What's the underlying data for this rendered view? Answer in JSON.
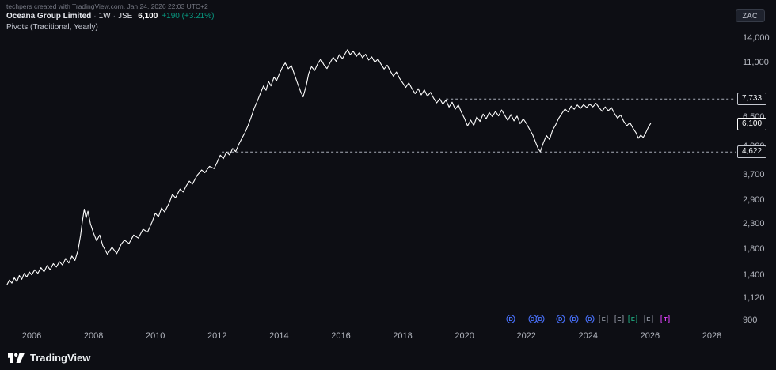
{
  "attribution": "techpers created with TradingView.com, Jan 24, 2026 22:03 UTC+2",
  "legend": {
    "symbol": "Oceana Group Limited",
    "separator": "·",
    "interval": "1W",
    "exchange": "JSE",
    "price": "6,100",
    "change": "+190 (+3.21%)",
    "indicator": "Pivots (Traditional, Yearly)"
  },
  "currency_badge": "ZAC",
  "logo_text": "TradingView",
  "colors": {
    "background": "#0d0e14",
    "panel_border": "#1f222c",
    "line": "#ffffff",
    "axis_text": "#b2b5be",
    "dim_text": "#787b86",
    "up": "#089981",
    "pivot_line": "#a9aeb9",
    "pivot_box_border": "#c5c8d0",
    "pivot_box_text": "#eceff2",
    "last_box_border": "#ffffff",
    "dividend": "#4a72ff",
    "earnings": "#8b8f9b",
    "earnings_alt": "#1fa67d",
    "split": "#e040fb",
    "badge_bg": "#1e222d",
    "badge_border": "#363b47",
    "badge_text": "#c9ccd6"
  },
  "chart_data": {
    "type": "line",
    "title": "Oceana Group Limited · 1W · JSE",
    "y_scale": "log",
    "grid": "off",
    "x_range": [
      2005.2,
      2028.8
    ],
    "y_range": [
      850,
      15000
    ],
    "x_ticks": [
      "2006",
      "2008",
      "2010",
      "2012",
      "2014",
      "2016",
      "2018",
      "2020",
      "2022",
      "2024",
      "2026",
      "2028"
    ],
    "x_tick_values": [
      2006,
      2008,
      2010,
      2012,
      2014,
      2016,
      2018,
      2020,
      2022,
      2024,
      2026,
      2028
    ],
    "y_ticks": [
      {
        "label": "14,000",
        "value": 14000
      },
      {
        "label": "11,000",
        "value": 11000
      },
      {
        "label": "6,500",
        "value": 6500
      },
      {
        "label": "4,900",
        "value": 4900
      },
      {
        "label": "3,700",
        "value": 3700
      },
      {
        "label": "2,900",
        "value": 2900
      },
      {
        "label": "2,300",
        "value": 2300
      },
      {
        "label": "1,800",
        "value": 1800
      },
      {
        "label": "1,400",
        "value": 1400
      },
      {
        "label": "1,120",
        "value": 1120
      },
      {
        "label": "900",
        "value": 900
      }
    ],
    "pivot_levels": [
      {
        "label": "7,733",
        "value": 7733,
        "start_year": 2019.4
      },
      {
        "label": "4,622",
        "value": 4622,
        "start_year": 2012.15
      }
    ],
    "last_price": {
      "label": "6,100",
      "value": 6100
    },
    "events": [
      {
        "label": "D",
        "shape": "circle",
        "color_key": "dividend",
        "year": 2021.5
      },
      {
        "label": "D",
        "shape": "circle",
        "color_key": "dividend",
        "year": 2022.2
      },
      {
        "label": "D",
        "shape": "circle",
        "color_key": "dividend",
        "year": 2022.45
      },
      {
        "label": "D",
        "shape": "circle",
        "color_key": "dividend",
        "year": 2023.1
      },
      {
        "label": "D",
        "shape": "circle",
        "color_key": "dividend",
        "year": 2023.55
      },
      {
        "label": "D",
        "shape": "circle",
        "color_key": "dividend",
        "year": 2024.05
      },
      {
        "label": "E",
        "shape": "square",
        "color_key": "earnings",
        "year": 2024.5
      },
      {
        "label": "E",
        "shape": "square",
        "color_key": "earnings",
        "year": 2025.0
      },
      {
        "label": "E",
        "shape": "square",
        "color_key": "earnings_alt",
        "year": 2025.45
      },
      {
        "label": "E",
        "shape": "square",
        "color_key": "earnings",
        "year": 2025.95
      },
      {
        "label": "T",
        "shape": "square",
        "color_key": "split",
        "year": 2026.5
      }
    ],
    "series": [
      {
        "name": "Oceana Group Limited close (ZAC)",
        "points": [
          [
            2005.2,
            1270
          ],
          [
            2005.28,
            1330
          ],
          [
            2005.36,
            1290
          ],
          [
            2005.44,
            1360
          ],
          [
            2005.52,
            1310
          ],
          [
            2005.6,
            1390
          ],
          [
            2005.68,
            1340
          ],
          [
            2005.76,
            1420
          ],
          [
            2005.84,
            1370
          ],
          [
            2005.92,
            1440
          ],
          [
            2006.0,
            1400
          ],
          [
            2006.1,
            1470
          ],
          [
            2006.2,
            1420
          ],
          [
            2006.3,
            1500
          ],
          [
            2006.4,
            1440
          ],
          [
            2006.5,
            1530
          ],
          [
            2006.6,
            1470
          ],
          [
            2006.7,
            1560
          ],
          [
            2006.8,
            1510
          ],
          [
            2006.9,
            1590
          ],
          [
            2007.0,
            1540
          ],
          [
            2007.1,
            1640
          ],
          [
            2007.2,
            1570
          ],
          [
            2007.3,
            1680
          ],
          [
            2007.4,
            1610
          ],
          [
            2007.5,
            1780
          ],
          [
            2007.58,
            2050
          ],
          [
            2007.64,
            2350
          ],
          [
            2007.7,
            2650
          ],
          [
            2007.76,
            2430
          ],
          [
            2007.82,
            2600
          ],
          [
            2007.9,
            2300
          ],
          [
            2008.0,
            2100
          ],
          [
            2008.1,
            1950
          ],
          [
            2008.2,
            2060
          ],
          [
            2008.3,
            1860
          ],
          [
            2008.45,
            1710
          ],
          [
            2008.6,
            1830
          ],
          [
            2008.75,
            1720
          ],
          [
            2008.9,
            1890
          ],
          [
            2009.0,
            1960
          ],
          [
            2009.15,
            1900
          ],
          [
            2009.3,
            2060
          ],
          [
            2009.45,
            2000
          ],
          [
            2009.6,
            2180
          ],
          [
            2009.75,
            2120
          ],
          [
            2009.9,
            2350
          ],
          [
            2010.0,
            2550
          ],
          [
            2010.1,
            2460
          ],
          [
            2010.2,
            2680
          ],
          [
            2010.3,
            2580
          ],
          [
            2010.45,
            2820
          ],
          [
            2010.55,
            3060
          ],
          [
            2010.65,
            2960
          ],
          [
            2010.8,
            3220
          ],
          [
            2010.9,
            3130
          ],
          [
            2011.0,
            3320
          ],
          [
            2011.1,
            3480
          ],
          [
            2011.2,
            3380
          ],
          [
            2011.35,
            3680
          ],
          [
            2011.5,
            3880
          ],
          [
            2011.6,
            3780
          ],
          [
            2011.75,
            4020
          ],
          [
            2011.9,
            3930
          ],
          [
            2012.0,
            4190
          ],
          [
            2012.1,
            4480
          ],
          [
            2012.2,
            4330
          ],
          [
            2012.3,
            4620
          ],
          [
            2012.4,
            4490
          ],
          [
            2012.5,
            4780
          ],
          [
            2012.6,
            4640
          ],
          [
            2012.7,
            4980
          ],
          [
            2012.8,
            5280
          ],
          [
            2012.9,
            5580
          ],
          [
            2013.0,
            5980
          ],
          [
            2013.1,
            6480
          ],
          [
            2013.2,
            7080
          ],
          [
            2013.3,
            7580
          ],
          [
            2013.4,
            8180
          ],
          [
            2013.5,
            8780
          ],
          [
            2013.58,
            8420
          ],
          [
            2013.66,
            9180
          ],
          [
            2013.74,
            8780
          ],
          [
            2013.84,
            9580
          ],
          [
            2013.92,
            9230
          ],
          [
            2014.0,
            9800
          ],
          [
            2014.1,
            10480
          ],
          [
            2014.2,
            10980
          ],
          [
            2014.3,
            10380
          ],
          [
            2014.4,
            10700
          ],
          [
            2014.5,
            9800
          ],
          [
            2014.6,
            9000
          ],
          [
            2014.7,
            8300
          ],
          [
            2014.78,
            7900
          ],
          [
            2014.88,
            8800
          ],
          [
            2014.96,
            9900
          ],
          [
            2015.05,
            10600
          ],
          [
            2015.15,
            10200
          ],
          [
            2015.25,
            10900
          ],
          [
            2015.35,
            11400
          ],
          [
            2015.45,
            10800
          ],
          [
            2015.55,
            10400
          ],
          [
            2015.65,
            11000
          ],
          [
            2015.75,
            11600
          ],
          [
            2015.85,
            11150
          ],
          [
            2015.95,
            11900
          ],
          [
            2016.05,
            11450
          ],
          [
            2016.15,
            12100
          ],
          [
            2016.22,
            12500
          ],
          [
            2016.3,
            11900
          ],
          [
            2016.4,
            12300
          ],
          [
            2016.5,
            11700
          ],
          [
            2016.6,
            12150
          ],
          [
            2016.7,
            11550
          ],
          [
            2016.8,
            11950
          ],
          [
            2016.9,
            11300
          ],
          [
            2017.0,
            11650
          ],
          [
            2017.1,
            11050
          ],
          [
            2017.2,
            11400
          ],
          [
            2017.3,
            10850
          ],
          [
            2017.4,
            10350
          ],
          [
            2017.5,
            10750
          ],
          [
            2017.6,
            10150
          ],
          [
            2017.7,
            9650
          ],
          [
            2017.8,
            10050
          ],
          [
            2017.9,
            9450
          ],
          [
            2018.0,
            9050
          ],
          [
            2018.1,
            8650
          ],
          [
            2018.2,
            9050
          ],
          [
            2018.3,
            8550
          ],
          [
            2018.4,
            8150
          ],
          [
            2018.5,
            8550
          ],
          [
            2018.6,
            8050
          ],
          [
            2018.7,
            8450
          ],
          [
            2018.8,
            7950
          ],
          [
            2018.9,
            8250
          ],
          [
            2019.0,
            7800
          ],
          [
            2019.1,
            7450
          ],
          [
            2019.2,
            7750
          ],
          [
            2019.3,
            7350
          ],
          [
            2019.4,
            7650
          ],
          [
            2019.5,
            7150
          ],
          [
            2019.6,
            7500
          ],
          [
            2019.7,
            7000
          ],
          [
            2019.8,
            7300
          ],
          [
            2019.9,
            6800
          ],
          [
            2020.0,
            6400
          ],
          [
            2020.1,
            5950
          ],
          [
            2020.2,
            6300
          ],
          [
            2020.3,
            5980
          ],
          [
            2020.4,
            6500
          ],
          [
            2020.5,
            6220
          ],
          [
            2020.6,
            6680
          ],
          [
            2020.7,
            6380
          ],
          [
            2020.8,
            6780
          ],
          [
            2020.9,
            6520
          ],
          [
            2021.0,
            6850
          ],
          [
            2021.1,
            6560
          ],
          [
            2021.2,
            6950
          ],
          [
            2021.3,
            6600
          ],
          [
            2021.4,
            6280
          ],
          [
            2021.5,
            6650
          ],
          [
            2021.6,
            6250
          ],
          [
            2021.7,
            6550
          ],
          [
            2021.8,
            6080
          ],
          [
            2021.9,
            6380
          ],
          [
            2022.0,
            6100
          ],
          [
            2022.1,
            5780
          ],
          [
            2022.2,
            5480
          ],
          [
            2022.3,
            5080
          ],
          [
            2022.38,
            4780
          ],
          [
            2022.45,
            4630
          ],
          [
            2022.55,
            5050
          ],
          [
            2022.65,
            5420
          ],
          [
            2022.75,
            5220
          ],
          [
            2022.85,
            5720
          ],
          [
            2022.95,
            6020
          ],
          [
            2023.05,
            6420
          ],
          [
            2023.15,
            6720
          ],
          [
            2023.25,
            7020
          ],
          [
            2023.35,
            6820
          ],
          [
            2023.45,
            7220
          ],
          [
            2023.55,
            7000
          ],
          [
            2023.65,
            7300
          ],
          [
            2023.75,
            7060
          ],
          [
            2023.85,
            7320
          ],
          [
            2023.95,
            7120
          ],
          [
            2024.05,
            7360
          ],
          [
            2024.15,
            7160
          ],
          [
            2024.25,
            7420
          ],
          [
            2024.35,
            7120
          ],
          [
            2024.45,
            6860
          ],
          [
            2024.55,
            7160
          ],
          [
            2024.65,
            6900
          ],
          [
            2024.75,
            7120
          ],
          [
            2024.85,
            6720
          ],
          [
            2024.95,
            6420
          ],
          [
            2025.05,
            6620
          ],
          [
            2025.15,
            6220
          ],
          [
            2025.25,
            5960
          ],
          [
            2025.35,
            6140
          ],
          [
            2025.45,
            5820
          ],
          [
            2025.55,
            5560
          ],
          [
            2025.62,
            5280
          ],
          [
            2025.7,
            5440
          ],
          [
            2025.78,
            5320
          ],
          [
            2025.86,
            5560
          ],
          [
            2025.94,
            5860
          ],
          [
            2026.02,
            6100
          ]
        ]
      }
    ]
  }
}
